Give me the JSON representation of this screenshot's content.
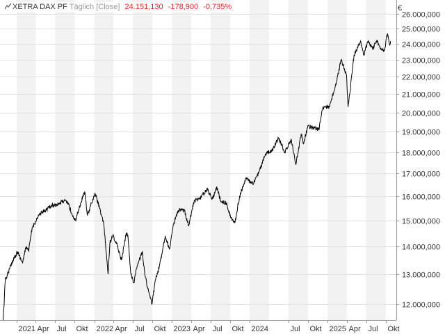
{
  "header": {
    "name": "XETRA DAX PF",
    "desc": "Täglich [Close]",
    "last": "24.151,130",
    "change": "-178,900",
    "change_pct": "-0,735%"
  },
  "colors": {
    "down": "#e02424",
    "line": "#000000",
    "band": "#f2f2f2",
    "grid": "#e0e0e0"
  },
  "chart_data": {
    "type": "line",
    "currency": "€",
    "ylim": [
      11500000,
      27000000
    ],
    "yticks": [
      {
        "value": 12000000,
        "label": "12.000,000"
      },
      {
        "value": 13000000,
        "label": "13.000,000"
      },
      {
        "value": 14000000,
        "label": "14.000,000"
      },
      {
        "value": 15000000,
        "label": "15.000,000"
      },
      {
        "value": 16000000,
        "label": "16.000,000"
      },
      {
        "value": 17000000,
        "label": "17.000,000"
      },
      {
        "value": 18000000,
        "label": "18.000,000"
      },
      {
        "value": 19000000,
        "label": "19.000,000"
      },
      {
        "value": 20000000,
        "label": "20.000,000"
      },
      {
        "value": 21000000,
        "label": "21.000,000"
      },
      {
        "value": 22000000,
        "label": "22.000,000"
      },
      {
        "value": 23000000,
        "label": "23.000,000"
      },
      {
        "value": 24000000,
        "label": "24.000,000"
      },
      {
        "value": 25000000,
        "label": "25.000,000"
      },
      {
        "value": 26000000,
        "label": "26.000,000"
      }
    ],
    "xlim": [
      "2020-10-15",
      "2025-11-20"
    ],
    "xticks": [
      {
        "date": "2021-01-01",
        "label": "2021"
      },
      {
        "date": "2021-04-01",
        "label": "Apr"
      },
      {
        "date": "2021-07-01",
        "label": "Jul"
      },
      {
        "date": "2021-10-01",
        "label": "Okt"
      },
      {
        "date": "2022-01-01",
        "label": "2022"
      },
      {
        "date": "2022-04-01",
        "label": "Apr"
      },
      {
        "date": "2022-07-01",
        "label": "Jul"
      },
      {
        "date": "2022-10-01",
        "label": "Okt"
      },
      {
        "date": "2023-01-01",
        "label": "2023"
      },
      {
        "date": "2023-04-01",
        "label": "Apr"
      },
      {
        "date": "2023-07-01",
        "label": "Jul"
      },
      {
        "date": "2023-10-01",
        "label": "Okt"
      },
      {
        "date": "2024-01-01",
        "label": "2024"
      },
      {
        "date": "2024-07-01",
        "label": "Jul"
      },
      {
        "date": "2024-10-01",
        "label": "Okt"
      },
      {
        "date": "2025-01-01",
        "label": "2025"
      },
      {
        "date": "2025-04-01",
        "label": "Apr"
      },
      {
        "date": "2025-07-01",
        "label": "Jul"
      },
      {
        "date": "2025-10-01",
        "label": "Okt"
      }
    ],
    "series": [
      {
        "x": [
          "2020-10-30",
          "2020-11-09",
          "2020-11-30",
          "2020-12-15",
          "2021-01-05",
          "2021-01-29",
          "2021-02-15",
          "2021-02-26",
          "2021-03-15",
          "2021-04-15",
          "2021-05-13",
          "2021-06-15",
          "2021-07-19",
          "2021-08-13",
          "2021-09-01",
          "2021-09-20",
          "2021-10-04",
          "2021-10-29",
          "2021-11-17",
          "2021-11-30",
          "2021-12-15",
          "2022-01-05",
          "2022-01-27",
          "2022-02-15",
          "2022-03-07",
          "2022-03-15",
          "2022-03-29",
          "2022-04-20",
          "2022-05-09",
          "2022-05-31",
          "2022-06-08",
          "2022-06-22",
          "2022-07-05",
          "2022-07-22",
          "2022-08-15",
          "2022-08-26",
          "2022-09-10",
          "2022-09-29",
          "2022-10-15",
          "2022-11-01",
          "2022-11-30",
          "2022-12-20",
          "2023-01-10",
          "2023-02-01",
          "2023-03-01",
          "2023-03-20",
          "2023-04-15",
          "2023-05-10",
          "2023-06-16",
          "2023-07-10",
          "2023-07-31",
          "2023-08-18",
          "2023-09-15",
          "2023-10-05",
          "2023-10-23",
          "2023-11-15",
          "2023-12-14",
          "2024-01-17",
          "2024-02-15",
          "2024-03-15",
          "2024-04-19",
          "2024-05-15",
          "2024-06-14",
          "2024-07-15",
          "2024-08-05",
          "2024-08-30",
          "2024-09-10",
          "2024-09-30",
          "2024-10-25",
          "2024-11-21",
          "2024-12-10",
          "2025-01-10",
          "2025-02-14",
          "2025-03-05",
          "2025-03-18",
          "2025-03-31",
          "2025-04-07",
          "2025-04-15",
          "2025-05-05",
          "2025-05-20",
          "2025-06-05",
          "2025-06-20",
          "2025-07-10",
          "2025-08-01",
          "2025-08-20",
          "2025-09-05",
          "2025-09-25",
          "2025-10-09",
          "2025-10-15",
          "2025-10-22",
          "2025-10-24"
        ],
        "values": [
          11500000,
          12800000,
          13200000,
          13500000,
          13800000,
          13400000,
          14000000,
          13800000,
          14700000,
          15200000,
          15400000,
          15600000,
          15700000,
          15800000,
          15700000,
          15200000,
          15000000,
          15700000,
          16200000,
          15200000,
          15600000,
          16100000,
          15500000,
          14800000,
          13000000,
          14100000,
          14400000,
          14000000,
          13500000,
          14500000,
          14400000,
          13000000,
          12700000,
          13300000,
          13800000,
          13000000,
          12500000,
          12000000,
          12800000,
          13200000,
          14400000,
          13900000,
          14900000,
          15400000,
          15400000,
          14800000,
          15800000,
          15900000,
          16300000,
          15900000,
          16400000,
          15800000,
          15700000,
          15100000,
          14900000,
          16000000,
          16800000,
          16500000,
          17100000,
          17900000,
          18100000,
          18700000,
          18000000,
          18600000,
          17400000,
          18900000,
          18400000,
          19300000,
          19200000,
          19100000,
          20300000,
          20300000,
          21800000,
          23000000,
          22600000,
          22100000,
          20300000,
          21000000,
          23300000,
          23700000,
          24200000,
          23300000,
          24200000,
          23700000,
          24200000,
          23800000,
          23600000,
          24700000,
          24300000,
          24000000,
          24200000
        ]
      }
    ]
  }
}
